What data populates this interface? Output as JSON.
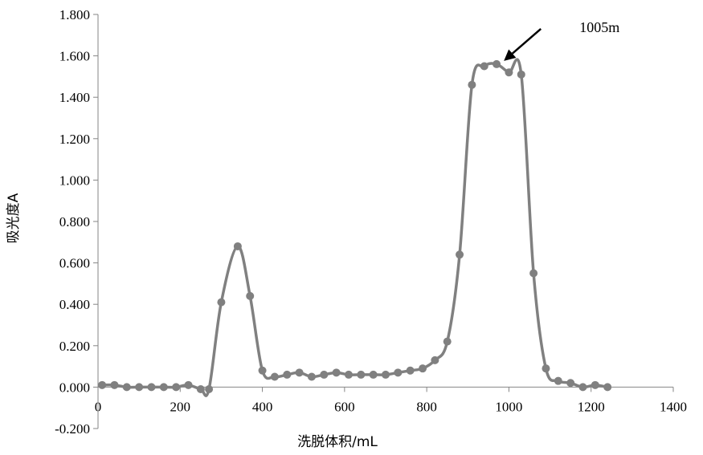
{
  "chart_data": {
    "type": "scatter",
    "title": "",
    "xlabel": "洗脱体积/mL",
    "ylabel": "吸光度A",
    "xlim": [
      0,
      1400
    ],
    "ylim": [
      -0.2,
      1.8
    ],
    "xticks": [
      "0",
      "200",
      "400",
      "600",
      "800",
      "1000",
      "1200",
      "1400"
    ],
    "yticks": [
      "-0.200",
      "0.000",
      "0.200",
      "0.400",
      "0.600",
      "0.800",
      "1.000",
      "1.200",
      "1.400",
      "1.600",
      "1.800"
    ],
    "grid": false,
    "legend": "none",
    "series": [
      {
        "color": "#808080",
        "x": [
          10,
          40,
          70,
          100,
          130,
          160,
          190,
          220,
          250,
          270,
          300,
          340,
          370,
          400,
          430,
          460,
          490,
          520,
          550,
          580,
          610,
          640,
          670,
          700,
          730,
          760,
          790,
          820,
          850,
          880,
          910,
          940,
          970,
          1000,
          1030,
          1060,
          1090,
          1120,
          1150,
          1180,
          1210,
          1240
        ],
        "y": [
          0.01,
          0.01,
          0.0,
          0.0,
          0.0,
          0.0,
          0.0,
          0.01,
          -0.01,
          -0.01,
          0.41,
          0.68,
          0.44,
          0.08,
          0.05,
          0.06,
          0.07,
          0.05,
          0.06,
          0.07,
          0.06,
          0.06,
          0.06,
          0.06,
          0.07,
          0.08,
          0.09,
          0.13,
          0.22,
          0.64,
          1.46,
          1.55,
          1.56,
          1.52,
          1.51,
          0.55,
          0.09,
          0.03,
          0.02,
          0.0,
          0.01,
          0.0
        ]
      }
    ],
    "annotation": {
      "text": "1005m",
      "x": 980,
      "y": 1.56
    }
  }
}
